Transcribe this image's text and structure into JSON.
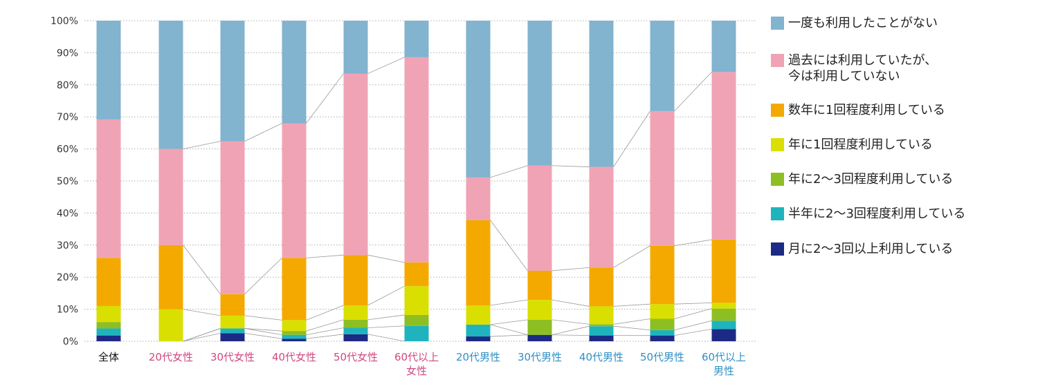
{
  "chart_data": {
    "type": "bar",
    "stacked": true,
    "categories": [
      {
        "label": "全体",
        "group": "all"
      },
      {
        "label": "20代女性",
        "group": "female"
      },
      {
        "label": "30代女性",
        "group": "female"
      },
      {
        "label": "40代女性",
        "group": "female"
      },
      {
        "label": "50代女性",
        "group": "female"
      },
      {
        "label": "60代以上\n女性",
        "group": "female"
      },
      {
        "label": "20代男性",
        "group": "male"
      },
      {
        "label": "30代男性",
        "group": "male"
      },
      {
        "label": "40代男性",
        "group": "male"
      },
      {
        "label": "50代男性",
        "group": "male"
      },
      {
        "label": "60代以上\n男性",
        "group": "male"
      }
    ],
    "series": [
      {
        "name": "月に2〜3回以上利用している",
        "color": "#1d2a85",
        "values": [
          1.8,
          0,
          2.5,
          0.8,
          2.2,
          0,
          1.5,
          2.0,
          1.8,
          1.8,
          3.8
        ]
      },
      {
        "name": "半年に2〜3回程度利用している",
        "color": "#1fb4bd",
        "values": [
          2.2,
          0,
          1.5,
          1.2,
          2.0,
          4.8,
          3.7,
          0,
          2.9,
          1.7,
          2.6
        ]
      },
      {
        "name": "年に2〜3回程度利用している",
        "color": "#8dbf22",
        "values": [
          2.0,
          0,
          0,
          1.2,
          2.5,
          3.4,
          0,
          4.7,
          0.6,
          3.5,
          3.8
        ]
      },
      {
        "name": "年に1回程度利用している",
        "color": "#d9df00",
        "values": [
          5.0,
          10.0,
          4.0,
          3.4,
          4.5,
          9.0,
          6.0,
          6.2,
          5.6,
          4.6,
          1.8
        ]
      },
      {
        "name": "数年に1回程度利用している",
        "color": "#f4a900",
        "values": [
          15.0,
          20.0,
          6.7,
          19.4,
          15.7,
          7.4,
          26.6,
          9.1,
          12.1,
          18.2,
          19.7
        ]
      },
      {
        "name": "過去には利用していたが、\n今は利用していない",
        "color": "#f0a3b5",
        "values": [
          43.2,
          30.0,
          47.7,
          42.0,
          56.6,
          64.0,
          13.3,
          32.8,
          31.4,
          42.0,
          52.3
        ]
      },
      {
        "name": "一度も利用したことがない",
        "color": "#82b3cf",
        "values": [
          30.8,
          40.0,
          37.6,
          32.0,
          16.5,
          11.4,
          48.9,
          45.2,
          45.6,
          28.2,
          16.0
        ]
      }
    ],
    "legend_order": [
      6,
      5,
      4,
      3,
      2,
      1,
      0
    ],
    "yaxis": {
      "min": 0,
      "max": 100,
      "step": 10,
      "tick_labels": [
        "0%",
        "10%",
        "20%",
        "30%",
        "40%",
        "50%",
        "60%",
        "70%",
        "80%",
        "90%",
        "100%"
      ]
    },
    "label_colors": {
      "all": "#111111",
      "female": "#d2467f",
      "male": "#2e8fc4"
    },
    "grid_color": "#aaaaaa",
    "connector_color": "#999999",
    "title": "",
    "xlabel": "",
    "ylabel": "",
    "legend_position": "right"
  }
}
